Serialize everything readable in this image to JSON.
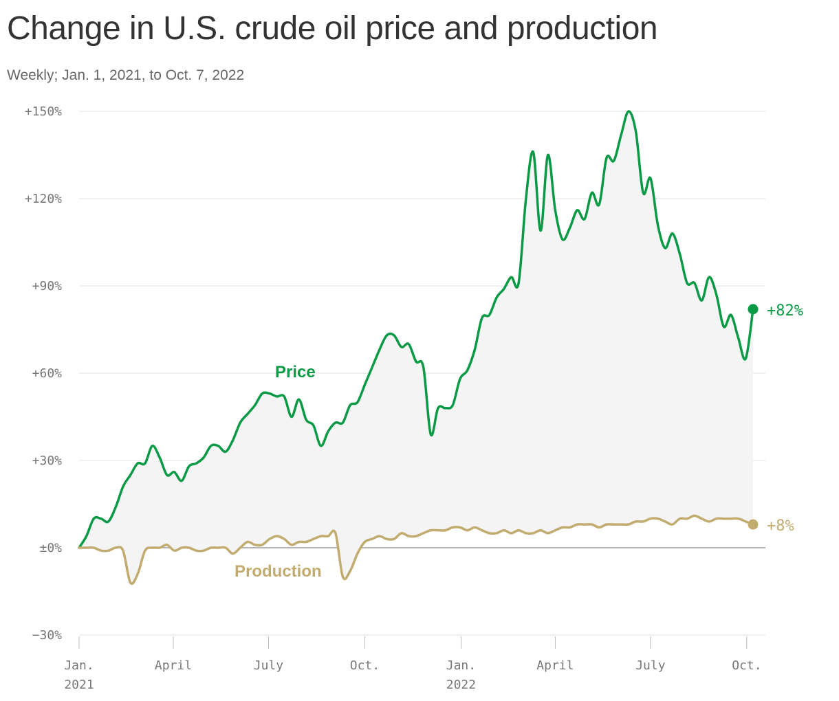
{
  "title": "Change in U.S. crude oil price and production",
  "subtitle": "Weekly; Jan. 1, 2021, to Oct. 7, 2022",
  "chart_data": {
    "type": "line",
    "title": "Change in U.S. crude oil price and production",
    "subtitle": "Weekly; Jan. 1, 2021, to Oct. 7, 2022",
    "xlabel": "",
    "ylabel": "",
    "x_range": [
      "2021-01-01",
      "2022-10-07"
    ],
    "ylim": [
      -30,
      150
    ],
    "y_ticks": [
      {
        "value": -30,
        "label": "−30%"
      },
      {
        "value": 0,
        "label": "±0%"
      },
      {
        "value": 30,
        "label": "+30%"
      },
      {
        "value": 60,
        "label": "+60%"
      },
      {
        "value": 90,
        "label": "+90%"
      },
      {
        "value": 120,
        "label": "+120%"
      },
      {
        "value": 150,
        "label": "+150%"
      }
    ],
    "x_ticks": [
      {
        "date": "2021-01-01",
        "label": "Jan.",
        "year": "2021"
      },
      {
        "date": "2021-04-01",
        "label": "April",
        "year": ""
      },
      {
        "date": "2021-07-01",
        "label": "July",
        "year": ""
      },
      {
        "date": "2021-10-01",
        "label": "Oct.",
        "year": ""
      },
      {
        "date": "2022-01-01",
        "label": "Jan.",
        "year": "2022"
      },
      {
        "date": "2022-04-01",
        "label": "April",
        "year": ""
      },
      {
        "date": "2022-07-01",
        "label": "July",
        "year": ""
      },
      {
        "date": "2022-10-01",
        "label": "Oct.",
        "year": ""
      }
    ],
    "grid": true,
    "series": [
      {
        "name": "Price",
        "color": "#0a9a45",
        "end_label": "+82%",
        "points": [
          [
            "2021-01-01",
            0
          ],
          [
            "2021-01-08",
            4
          ],
          [
            "2021-01-15",
            10
          ],
          [
            "2021-01-22",
            10
          ],
          [
            "2021-01-29",
            9
          ],
          [
            "2021-02-05",
            14
          ],
          [
            "2021-02-12",
            21
          ],
          [
            "2021-02-19",
            25
          ],
          [
            "2021-02-26",
            29
          ],
          [
            "2021-03-05",
            29
          ],
          [
            "2021-03-12",
            35
          ],
          [
            "2021-03-19",
            31
          ],
          [
            "2021-03-26",
            25
          ],
          [
            "2021-04-02",
            26
          ],
          [
            "2021-04-09",
            23
          ],
          [
            "2021-04-16",
            28
          ],
          [
            "2021-04-23",
            29
          ],
          [
            "2021-04-30",
            31
          ],
          [
            "2021-05-07",
            35
          ],
          [
            "2021-05-14",
            35
          ],
          [
            "2021-05-21",
            33
          ],
          [
            "2021-05-28",
            37
          ],
          [
            "2021-06-04",
            43
          ],
          [
            "2021-06-11",
            46
          ],
          [
            "2021-06-18",
            49
          ],
          [
            "2021-06-25",
            53
          ],
          [
            "2021-07-02",
            53
          ],
          [
            "2021-07-09",
            52
          ],
          [
            "2021-07-16",
            52
          ],
          [
            "2021-07-23",
            45
          ],
          [
            "2021-07-30",
            51
          ],
          [
            "2021-08-06",
            44
          ],
          [
            "2021-08-13",
            42
          ],
          [
            "2021-08-20",
            35
          ],
          [
            "2021-08-27",
            40
          ],
          [
            "2021-09-03",
            43
          ],
          [
            "2021-09-10",
            43
          ],
          [
            "2021-09-17",
            49
          ],
          [
            "2021-09-24",
            50
          ],
          [
            "2021-10-01",
            56
          ],
          [
            "2021-10-08",
            62
          ],
          [
            "2021-10-15",
            68
          ],
          [
            "2021-10-22",
            73
          ],
          [
            "2021-10-29",
            73
          ],
          [
            "2021-11-05",
            69
          ],
          [
            "2021-11-12",
            70
          ],
          [
            "2021-11-19",
            64
          ],
          [
            "2021-11-26",
            62
          ],
          [
            "2021-12-03",
            39
          ],
          [
            "2021-12-10",
            48
          ],
          [
            "2021-12-17",
            48
          ],
          [
            "2021-12-24",
            49
          ],
          [
            "2021-12-31",
            58
          ],
          [
            "2022-01-07",
            61
          ],
          [
            "2022-01-14",
            68
          ],
          [
            "2022-01-21",
            79
          ],
          [
            "2022-01-28",
            80
          ],
          [
            "2022-02-04",
            86
          ],
          [
            "2022-02-11",
            89
          ],
          [
            "2022-02-18",
            93
          ],
          [
            "2022-02-25",
            91
          ],
          [
            "2022-03-04",
            120
          ],
          [
            "2022-03-11",
            136
          ],
          [
            "2022-03-18",
            109
          ],
          [
            "2022-03-25",
            135
          ],
          [
            "2022-04-01",
            116
          ],
          [
            "2022-04-08",
            106
          ],
          [
            "2022-04-15",
            110
          ],
          [
            "2022-04-22",
            116
          ],
          [
            "2022-04-29",
            113
          ],
          [
            "2022-05-06",
            122
          ],
          [
            "2022-05-13",
            118
          ],
          [
            "2022-05-20",
            134
          ],
          [
            "2022-05-27",
            133
          ],
          [
            "2022-06-03",
            142
          ],
          [
            "2022-06-10",
            150
          ],
          [
            "2022-06-17",
            143
          ],
          [
            "2022-06-24",
            122
          ],
          [
            "2022-07-01",
            127
          ],
          [
            "2022-07-08",
            111
          ],
          [
            "2022-07-15",
            103
          ],
          [
            "2022-07-22",
            108
          ],
          [
            "2022-07-29",
            101
          ],
          [
            "2022-08-05",
            91
          ],
          [
            "2022-08-12",
            91
          ],
          [
            "2022-08-19",
            85
          ],
          [
            "2022-08-26",
            93
          ],
          [
            "2022-09-02",
            87
          ],
          [
            "2022-09-09",
            76
          ],
          [
            "2022-09-16",
            80
          ],
          [
            "2022-09-23",
            72
          ],
          [
            "2022-09-30",
            65
          ],
          [
            "2022-10-07",
            82
          ]
        ]
      },
      {
        "name": "Production",
        "color": "#c1ab6f",
        "end_label": "+8%",
        "points": [
          [
            "2021-01-01",
            0
          ],
          [
            "2021-01-08",
            0
          ],
          [
            "2021-01-15",
            0
          ],
          [
            "2021-01-22",
            -1
          ],
          [
            "2021-01-29",
            -1
          ],
          [
            "2021-02-05",
            0
          ],
          [
            "2021-02-12",
            -1
          ],
          [
            "2021-02-19",
            -12
          ],
          [
            "2021-02-26",
            -9
          ],
          [
            "2021-03-05",
            -1
          ],
          [
            "2021-03-12",
            0
          ],
          [
            "2021-03-19",
            0
          ],
          [
            "2021-03-26",
            1
          ],
          [
            "2021-04-02",
            -1
          ],
          [
            "2021-04-09",
            0
          ],
          [
            "2021-04-16",
            0
          ],
          [
            "2021-04-23",
            -1
          ],
          [
            "2021-04-30",
            -1
          ],
          [
            "2021-05-07",
            0
          ],
          [
            "2021-05-14",
            0
          ],
          [
            "2021-05-21",
            0
          ],
          [
            "2021-05-28",
            -2
          ],
          [
            "2021-06-04",
            0
          ],
          [
            "2021-06-11",
            2
          ],
          [
            "2021-06-18",
            1
          ],
          [
            "2021-06-25",
            1
          ],
          [
            "2021-07-02",
            3
          ],
          [
            "2021-07-09",
            4
          ],
          [
            "2021-07-16",
            3
          ],
          [
            "2021-07-23",
            1
          ],
          [
            "2021-07-30",
            2
          ],
          [
            "2021-08-06",
            2
          ],
          [
            "2021-08-13",
            3
          ],
          [
            "2021-08-20",
            4
          ],
          [
            "2021-08-27",
            4
          ],
          [
            "2021-09-03",
            5
          ],
          [
            "2021-09-10",
            -10
          ],
          [
            "2021-09-17",
            -8
          ],
          [
            "2021-09-24",
            -2
          ],
          [
            "2021-10-01",
            2
          ],
          [
            "2021-10-08",
            3
          ],
          [
            "2021-10-15",
            4
          ],
          [
            "2021-10-22",
            3
          ],
          [
            "2021-10-29",
            3
          ],
          [
            "2021-11-05",
            5
          ],
          [
            "2021-11-12",
            4
          ],
          [
            "2021-11-19",
            4
          ],
          [
            "2021-11-26",
            5
          ],
          [
            "2021-12-03",
            6
          ],
          [
            "2021-12-10",
            6
          ],
          [
            "2021-12-17",
            6
          ],
          [
            "2021-12-24",
            7
          ],
          [
            "2021-12-31",
            7
          ],
          [
            "2022-01-07",
            6
          ],
          [
            "2022-01-14",
            7
          ],
          [
            "2022-01-21",
            6
          ],
          [
            "2022-01-28",
            5
          ],
          [
            "2022-02-04",
            5
          ],
          [
            "2022-02-11",
            6
          ],
          [
            "2022-02-18",
            5
          ],
          [
            "2022-02-25",
            6
          ],
          [
            "2022-03-04",
            5
          ],
          [
            "2022-03-11",
            5
          ],
          [
            "2022-03-18",
            6
          ],
          [
            "2022-03-25",
            5
          ],
          [
            "2022-04-01",
            6
          ],
          [
            "2022-04-08",
            7
          ],
          [
            "2022-04-15",
            7
          ],
          [
            "2022-04-22",
            8
          ],
          [
            "2022-04-29",
            8
          ],
          [
            "2022-05-06",
            8
          ],
          [
            "2022-05-13",
            7
          ],
          [
            "2022-05-20",
            8
          ],
          [
            "2022-05-27",
            8
          ],
          [
            "2022-06-03",
            8
          ],
          [
            "2022-06-10",
            8
          ],
          [
            "2022-06-17",
            9
          ],
          [
            "2022-06-24",
            9
          ],
          [
            "2022-07-01",
            10
          ],
          [
            "2022-07-08",
            10
          ],
          [
            "2022-07-15",
            9
          ],
          [
            "2022-07-22",
            8
          ],
          [
            "2022-07-29",
            10
          ],
          [
            "2022-08-05",
            10
          ],
          [
            "2022-08-12",
            11
          ],
          [
            "2022-08-19",
            10
          ],
          [
            "2022-08-26",
            9
          ],
          [
            "2022-09-02",
            10
          ],
          [
            "2022-09-09",
            10
          ],
          [
            "2022-09-16",
            10
          ],
          [
            "2022-09-23",
            10
          ],
          [
            "2022-09-30",
            9
          ],
          [
            "2022-10-07",
            8
          ]
        ]
      }
    ],
    "area_fill": {
      "between": [
        "Price",
        "Production"
      ],
      "color": "#f4f4f4"
    }
  }
}
